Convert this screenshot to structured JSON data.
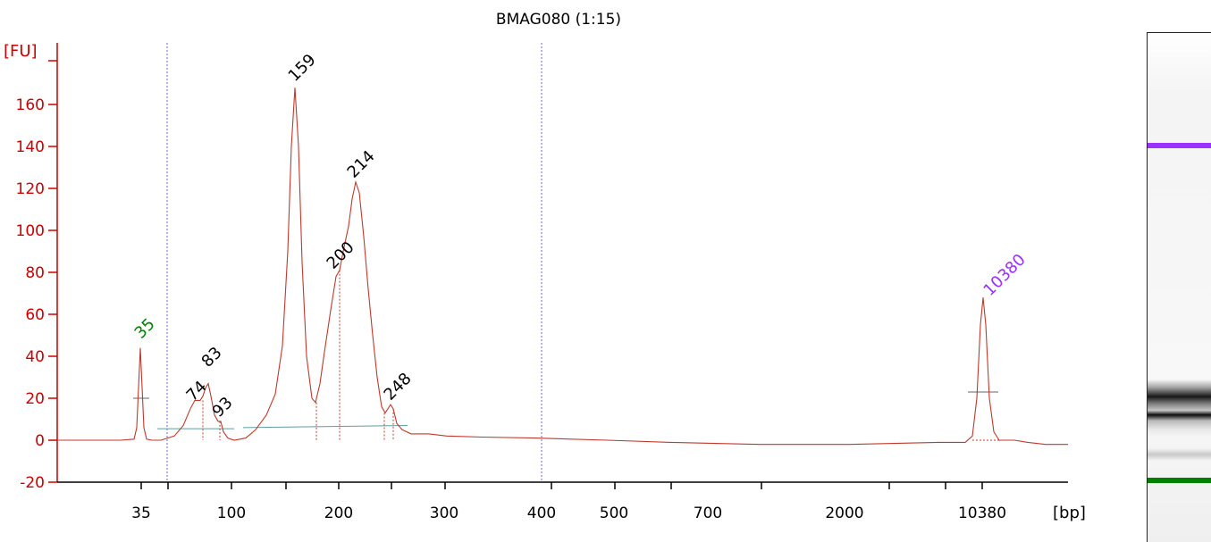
{
  "chart_data": {
    "type": "line",
    "title": "BMAG080 (1:15)",
    "ylabel": "[FU]",
    "xlabel": "[bp]",
    "ylim": [
      -20,
      175
    ],
    "y_ticks": [
      -20,
      0,
      20,
      40,
      60,
      80,
      100,
      120,
      140,
      160
    ],
    "x_tick_labels": [
      "35",
      "100",
      "200",
      "300",
      "400",
      "500",
      "700",
      "2000",
      "10380"
    ],
    "grid": false,
    "colors": {
      "axis": "#cc0000",
      "trace": "#c0392b",
      "marker_lower": "#008000",
      "marker_upper": "#9b30ff",
      "peak_label": "#000000",
      "baseline": "#5f9ea0",
      "divider": "#6a6ad0"
    },
    "peaks": [
      {
        "label": "35",
        "fu": 44,
        "marker": "lower"
      },
      {
        "label": "74",
        "fu": 19
      },
      {
        "label": "83",
        "fu": 27
      },
      {
        "label": "93",
        "fu": 8
      },
      {
        "label": "159",
        "fu": 168
      },
      {
        "label": "200",
        "fu": 81
      },
      {
        "label": "214",
        "fu": 123
      },
      {
        "label": "248",
        "fu": 17
      },
      {
        "label": "10380",
        "fu": 68,
        "marker": "upper"
      }
    ],
    "gel_lane": {
      "bands": [
        "upper-marker",
        "sample-smear",
        "lower-marker"
      ],
      "colors": {
        "upper-marker": "#9b30ff",
        "lower-marker": "#008000",
        "sample-smear": "#111111"
      }
    }
  }
}
